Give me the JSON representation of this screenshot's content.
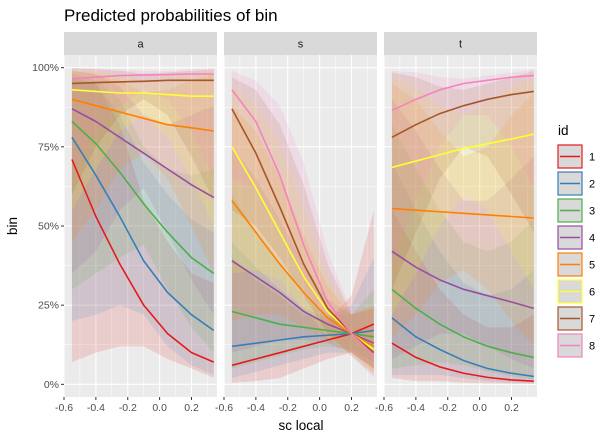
{
  "chart_data": {
    "type": "line",
    "title": "Predicted probabilities of bin",
    "xlabel": "sc local",
    "ylabel": "bin",
    "xlim": [
      -0.6,
      0.36
    ],
    "ylim": [
      -0.04,
      1.04
    ],
    "x_ticks": [
      -0.6,
      -0.4,
      -0.2,
      0.0,
      0.2
    ],
    "x_tick_labels": [
      "-0.6",
      "-0.4",
      "-0.2",
      "0.0",
      "0.2"
    ],
    "y_ticks": [
      0,
      0.25,
      0.5,
      0.75,
      1.0
    ],
    "y_tick_labels": [
      "0%",
      "25%",
      "50%",
      "75%",
      "100%"
    ],
    "grid": true,
    "legend": {
      "title": "id",
      "position": "right"
    },
    "x": [
      -0.55,
      -0.4,
      -0.25,
      -0.1,
      0.05,
      0.2,
      0.34
    ],
    "series_meta": [
      {
        "name": "1",
        "color": "#E41A1C"
      },
      {
        "name": "2",
        "color": "#377EB8"
      },
      {
        "name": "3",
        "color": "#4DAF4A"
      },
      {
        "name": "4",
        "color": "#984EA3"
      },
      {
        "name": "5",
        "color": "#FF7F00"
      },
      {
        "name": "6",
        "color": "#FFFF33"
      },
      {
        "name": "7",
        "color": "#A65628"
      },
      {
        "name": "8",
        "color": "#F781BF"
      }
    ],
    "facets": [
      {
        "label": "a",
        "series": [
          {
            "name": "1",
            "values": [
              0.71,
              0.53,
              0.38,
              0.25,
              0.16,
              0.1,
              0.07
            ],
            "lower": [
              0.07,
              0.1,
              0.12,
              0.12,
              0.08,
              0.05,
              0.02
            ],
            "upper": [
              0.96,
              0.95,
              0.82,
              0.58,
              0.45,
              0.35,
              0.32
            ]
          },
          {
            "name": "2",
            "values": [
              0.78,
              0.66,
              0.53,
              0.39,
              0.29,
              0.22,
              0.17
            ],
            "lower": [
              0.2,
              0.22,
              0.25,
              0.22,
              0.12,
              0.06,
              0.03
            ],
            "upper": [
              0.97,
              0.95,
              0.85,
              0.7,
              0.6,
              0.52,
              0.48
            ]
          },
          {
            "name": "3",
            "values": [
              0.83,
              0.76,
              0.67,
              0.57,
              0.48,
              0.4,
              0.35
            ],
            "lower": [
              0.3,
              0.35,
              0.4,
              0.44,
              0.3,
              0.18,
              0.1
            ],
            "upper": [
              0.98,
              0.96,
              0.9,
              0.75,
              0.68,
              0.66,
              0.68
            ]
          },
          {
            "name": "4",
            "values": [
              0.87,
              0.83,
              0.78,
              0.73,
              0.68,
              0.63,
              0.59
            ],
            "lower": [
              0.35,
              0.42,
              0.55,
              0.62,
              0.48,
              0.33,
              0.22
            ],
            "upper": [
              0.99,
              0.98,
              0.94,
              0.85,
              0.82,
              0.85,
              0.88
            ]
          },
          {
            "name": "5",
            "values": [
              0.9,
              0.88,
              0.86,
              0.84,
              0.82,
              0.81,
              0.8
            ],
            "lower": [
              0.45,
              0.55,
              0.68,
              0.73,
              0.65,
              0.5,
              0.35
            ],
            "upper": [
              0.99,
              0.98,
              0.96,
              0.92,
              0.93,
              0.96,
              0.98
            ]
          },
          {
            "name": "6",
            "values": [
              0.93,
              0.925,
              0.92,
              0.92,
              0.915,
              0.91,
              0.91
            ],
            "lower": [
              0.55,
              0.68,
              0.8,
              0.85,
              0.78,
              0.65,
              0.5
            ],
            "upper": [
              0.995,
              0.99,
              0.98,
              0.96,
              0.97,
              0.98,
              0.99
            ]
          },
          {
            "name": "7",
            "values": [
              0.95,
              0.953,
              0.955,
              0.957,
              0.96,
              0.96,
              0.96
            ],
            "lower": [
              0.6,
              0.75,
              0.85,
              0.9,
              0.85,
              0.72,
              0.58
            ],
            "upper": [
              0.998,
              0.995,
              0.99,
              0.98,
              0.985,
              0.99,
              0.995
            ]
          },
          {
            "name": "8",
            "values": [
              0.965,
              0.97,
              0.975,
              0.977,
              0.978,
              0.98,
              0.98
            ],
            "lower": [
              0.65,
              0.8,
              0.88,
              0.93,
              0.9,
              0.8,
              0.65
            ],
            "upper": [
              0.999,
              0.998,
              0.995,
              0.99,
              0.99,
              0.995,
              0.998
            ]
          }
        ]
      },
      {
        "label": "s",
        "series": [
          {
            "name": "1",
            "values": [
              0.06,
              0.08,
              0.1,
              0.12,
              0.14,
              0.16,
              0.19
            ],
            "lower": [
              0.005,
              0.01,
              0.02,
              0.05,
              0.08,
              0.1,
              0.05
            ],
            "upper": [
              0.4,
              0.33,
              0.28,
              0.22,
              0.2,
              0.28,
              0.55
            ]
          },
          {
            "name": "2",
            "values": [
              0.12,
              0.13,
              0.14,
              0.15,
              0.155,
              0.16,
              0.17
            ],
            "lower": [
              0.02,
              0.04,
              0.06,
              0.08,
              0.1,
              0.1,
              0.05
            ],
            "upper": [
              0.45,
              0.37,
              0.3,
              0.24,
              0.21,
              0.25,
              0.4
            ]
          },
          {
            "name": "3",
            "values": [
              0.23,
              0.21,
              0.19,
              0.18,
              0.17,
              0.16,
              0.15
            ],
            "lower": [
              0.05,
              0.07,
              0.09,
              0.11,
              0.12,
              0.11,
              0.07
            ],
            "upper": [
              0.6,
              0.48,
              0.38,
              0.28,
              0.22,
              0.22,
              0.3
            ]
          },
          {
            "name": "4",
            "values": [
              0.39,
              0.34,
              0.29,
              0.23,
              0.19,
              0.16,
              0.13
            ],
            "lower": [
              0.1,
              0.12,
              0.14,
              0.14,
              0.13,
              0.1,
              0.05
            ],
            "upper": [
              0.75,
              0.65,
              0.52,
              0.38,
              0.27,
              0.22,
              0.25
            ]
          },
          {
            "name": "5",
            "values": [
              0.58,
              0.48,
              0.38,
              0.29,
              0.21,
              0.16,
              0.12
            ],
            "lower": [
              0.2,
              0.22,
              0.22,
              0.18,
              0.14,
              0.1,
              0.04
            ],
            "upper": [
              0.88,
              0.8,
              0.65,
              0.47,
              0.31,
              0.22,
              0.25
            ]
          },
          {
            "name": "6",
            "values": [
              0.75,
              0.62,
              0.48,
              0.34,
              0.23,
              0.16,
              0.11
            ],
            "lower": [
              0.35,
              0.36,
              0.33,
              0.24,
              0.15,
              0.09,
              0.03
            ],
            "upper": [
              0.94,
              0.88,
              0.76,
              0.56,
              0.34,
              0.22,
              0.25
            ]
          },
          {
            "name": "7",
            "values": [
              0.87,
              0.73,
              0.56,
              0.38,
              0.24,
              0.16,
              0.1
            ],
            "lower": [
              0.55,
              0.5,
              0.4,
              0.28,
              0.16,
              0.09,
              0.03
            ],
            "upper": [
              0.97,
              0.93,
              0.82,
              0.63,
              0.38,
              0.22,
              0.24
            ]
          },
          {
            "name": "8",
            "values": [
              0.93,
              0.83,
              0.66,
              0.44,
              0.26,
              0.16,
              0.09
            ],
            "lower": [
              0.65,
              0.62,
              0.5,
              0.32,
              0.17,
              0.09,
              0.02
            ],
            "upper": [
              0.99,
              0.96,
              0.88,
              0.7,
              0.42,
              0.23,
              0.24
            ]
          }
        ]
      },
      {
        "label": "t",
        "series": [
          {
            "name": "1",
            "values": [
              0.13,
              0.085,
              0.055,
              0.035,
              0.022,
              0.014,
              0.01
            ],
            "lower": [
              0.02,
              0.01,
              0.01,
              0.005,
              0.003,
              0.002,
              0.001
            ],
            "upper": [
              0.55,
              0.42,
              0.3,
              0.22,
              0.18,
              0.18,
              0.22
            ]
          },
          {
            "name": "2",
            "values": [
              0.21,
              0.15,
              0.11,
              0.075,
              0.05,
              0.035,
              0.025
            ],
            "lower": [
              0.03,
              0.03,
              0.03,
              0.02,
              0.01,
              0.006,
              0.003
            ],
            "upper": [
              0.7,
              0.55,
              0.42,
              0.32,
              0.28,
              0.3,
              0.36
            ]
          },
          {
            "name": "3",
            "values": [
              0.3,
              0.24,
              0.19,
              0.15,
              0.12,
              0.1,
              0.085
            ],
            "lower": [
              0.05,
              0.06,
              0.07,
              0.06,
              0.04,
              0.025,
              0.015
            ],
            "upper": [
              0.82,
              0.68,
              0.55,
              0.45,
              0.42,
              0.45,
              0.52
            ]
          },
          {
            "name": "4",
            "values": [
              0.42,
              0.37,
              0.33,
              0.3,
              0.28,
              0.26,
              0.24
            ],
            "lower": [
              0.08,
              0.12,
              0.16,
              0.16,
              0.12,
              0.08,
              0.05
            ],
            "upper": [
              0.9,
              0.8,
              0.68,
              0.58,
              0.58,
              0.65,
              0.72
            ]
          },
          {
            "name": "5",
            "values": [
              0.555,
              0.55,
              0.545,
              0.54,
              0.535,
              0.53,
              0.525
            ],
            "lower": [
              0.15,
              0.22,
              0.32,
              0.36,
              0.3,
              0.2,
              0.12
            ],
            "upper": [
              0.95,
              0.9,
              0.8,
              0.72,
              0.75,
              0.85,
              0.92
            ]
          },
          {
            "name": "6",
            "values": [
              0.685,
              0.705,
              0.725,
              0.745,
              0.76,
              0.775,
              0.79
            ],
            "lower": [
              0.22,
              0.35,
              0.5,
              0.6,
              0.55,
              0.42,
              0.3
            ],
            "upper": [
              0.97,
              0.94,
              0.88,
              0.85,
              0.89,
              0.94,
              0.97
            ]
          },
          {
            "name": "7",
            "values": [
              0.78,
              0.82,
              0.855,
              0.88,
              0.9,
              0.915,
              0.925
            ],
            "lower": [
              0.3,
              0.48,
              0.65,
              0.75,
              0.72,
              0.6,
              0.48
            ],
            "upper": [
              0.985,
              0.97,
              0.94,
              0.93,
              0.95,
              0.97,
              0.99
            ]
          },
          {
            "name": "8",
            "values": [
              0.865,
              0.9,
              0.93,
              0.95,
              0.96,
              0.97,
              0.975
            ],
            "lower": [
              0.38,
              0.58,
              0.75,
              0.85,
              0.85,
              0.75,
              0.62
            ],
            "upper": [
              0.99,
              0.985,
              0.97,
              0.965,
              0.975,
              0.985,
              0.995
            ]
          }
        ]
      }
    ]
  }
}
